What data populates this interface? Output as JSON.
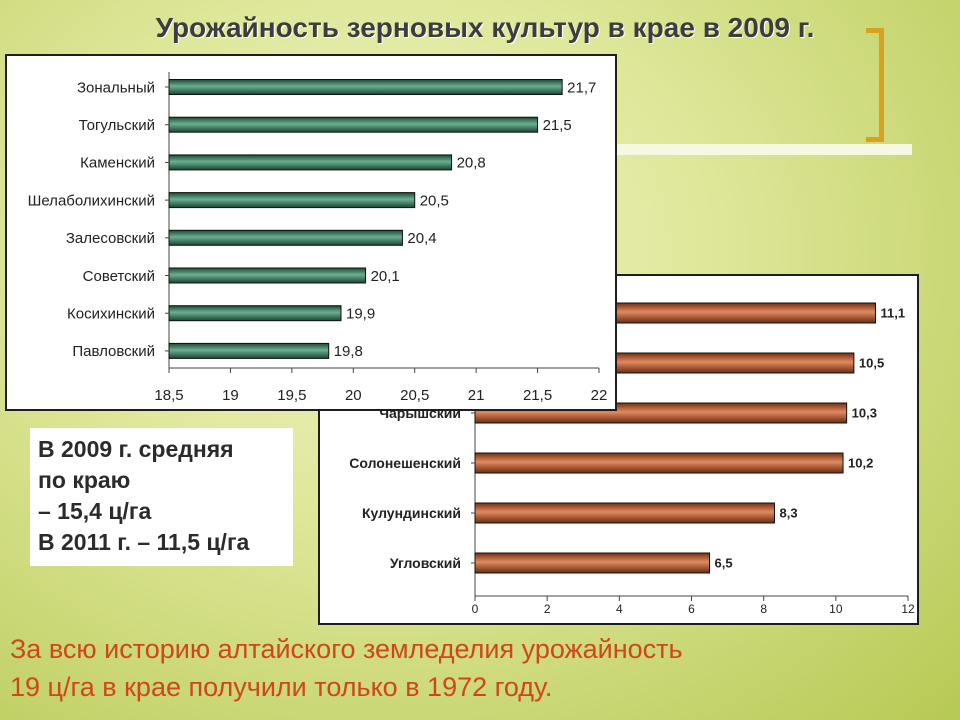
{
  "page": {
    "title": "Урожайность зерновых культур в крае в 2009 г.",
    "note_lines": [
      "В 2009 г. средняя",
      "по краю",
      "– 15,4 ц/га",
      "В 2011 г. – 11,5 ц/га"
    ],
    "bottom_lines": [
      "За всю историю алтайского земледелия урожайность",
      "19 ц/га в крае получили только в 1972 году."
    ],
    "colors": {
      "accent_bracket": "#d8a21e",
      "bottom_text": "#d0461c",
      "green_bar": "#2e8b62",
      "orange_bar": "#d4581c"
    }
  },
  "chart_data": [
    {
      "type": "bar",
      "orientation": "horizontal",
      "categories": [
        "Зональный",
        "Тогульский",
        "Каменский",
        "Шелаболихинский",
        "Залесовский",
        "Советский",
        "Косихинский",
        "Павловский"
      ],
      "values": [
        21.7,
        21.5,
        20.8,
        20.5,
        20.4,
        20.1,
        19.9,
        19.8
      ],
      "value_labels": [
        "21,7",
        "21,5",
        "20,8",
        "20,5",
        "20,4",
        "20,1",
        "19,9",
        "19,8"
      ],
      "xlim": [
        18.5,
        22
      ],
      "ticks": [
        18.5,
        19,
        19.5,
        20,
        20.5,
        21,
        21.5,
        22
      ],
      "tick_labels": [
        "18,5",
        "19",
        "19,5",
        "20",
        "20,5",
        "21",
        "21,5",
        "22"
      ],
      "grid": false,
      "legend": "none",
      "bar_color": "#2e8b62"
    },
    {
      "type": "bar",
      "orientation": "horizontal",
      "categories": [
        "",
        "",
        "Чарышский",
        "Солонешенский",
        "Кулундинский",
        "Угловский"
      ],
      "values": [
        11.1,
        10.5,
        10.3,
        10.2,
        8.3,
        6.5
      ],
      "value_labels": [
        "11,1",
        "10,5",
        "10,3",
        "10,2",
        "8,3",
        "6,5"
      ],
      "xlim": [
        0,
        12
      ],
      "ticks": [
        0,
        2,
        4,
        6,
        8,
        10,
        12
      ],
      "tick_labels": [
        "0",
        "2",
        "4",
        "6",
        "8",
        "10",
        "12"
      ],
      "grid": false,
      "legend": "none",
      "bar_color": "#d4581c"
    }
  ]
}
